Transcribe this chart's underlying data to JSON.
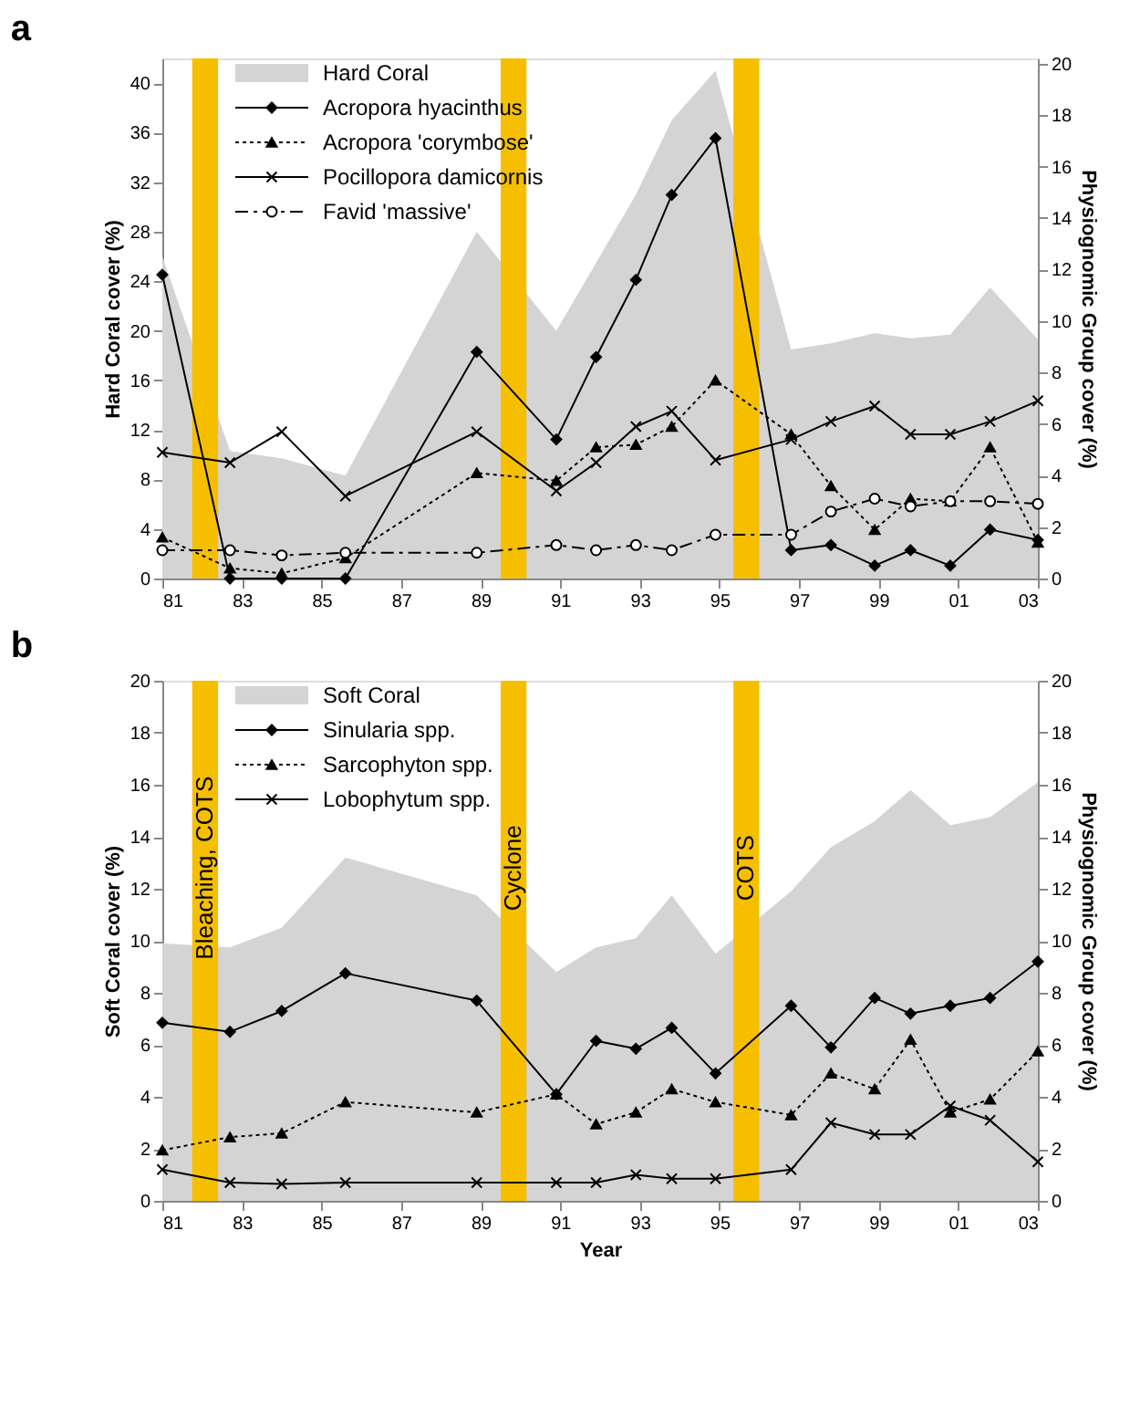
{
  "chart_data": [
    {
      "type": "line",
      "title": "a",
      "ylabel": "Hard Coral cover (%)",
      "y2label": "Physiognomic Group cover (%)",
      "x": [
        1981,
        1982.7,
        1984,
        1985.6,
        1988.9,
        1990.9,
        1991.9,
        1992.9,
        1993.8,
        1994.9,
        1996.8,
        1997.8,
        1998.9,
        1999.8,
        2000.8,
        2001.8,
        2003
      ],
      "xlim": [
        1981,
        2003
      ],
      "xticks": [
        {
          "value": 1981,
          "label": "81"
        },
        {
          "value": 1983,
          "label": "83"
        },
        {
          "value": 1985,
          "label": "85"
        },
        {
          "value": 1987,
          "label": "87"
        },
        {
          "value": 1989,
          "label": "89"
        },
        {
          "value": 1991,
          "label": "91"
        },
        {
          "value": 1993,
          "label": "93"
        },
        {
          "value": 1995,
          "label": "95"
        },
        {
          "value": 1997,
          "label": "97"
        },
        {
          "value": 1999,
          "label": "99"
        },
        {
          "value": 2001,
          "label": "01"
        },
        {
          "value": 2003,
          "label": "03"
        }
      ],
      "ylim": [
        0,
        42
      ],
      "yticks": [
        0,
        4,
        8,
        12,
        16,
        20,
        24,
        28,
        32,
        36,
        40
      ],
      "y2lim": [
        0,
        20.2
      ],
      "y2ticks": [
        0,
        2,
        4,
        6,
        8,
        10,
        12,
        14,
        16,
        18,
        20
      ],
      "legend": "top left",
      "series": [
        {
          "name": "Hard Coral",
          "type": "area",
          "color": "#d4d4d4",
          "x": [
            1981,
            1982.7,
            1984,
            1985.6,
            1988.9,
            1990.9,
            1992.9,
            1993.8,
            1994.9,
            1996.8,
            1997.8,
            1998.9,
            1999.8,
            2000.8,
            2001.8,
            2003
          ],
          "values": [
            26,
            10.3,
            9.7,
            8.3,
            28,
            20,
            31,
            37,
            41,
            18.5,
            19,
            19.8,
            19.4,
            19.7,
            23.5,
            19.3
          ]
        },
        {
          "name": "Acropora hyacinthus",
          "axis": "y2",
          "color": "#000000",
          "marker": "diamond",
          "line_style": "solid",
          "values": [
            11.8,
            0,
            0,
            0,
            8.8,
            5.4,
            8.6,
            11.6,
            14.9,
            17.1,
            1.1,
            1.3,
            0.5,
            1.1,
            0.5,
            1.9,
            1.5
          ]
        },
        {
          "name": "Acropora 'corymbose'",
          "axis": "y2",
          "color": "#000000",
          "marker": "triangle",
          "line_style": "dotted",
          "values": [
            1.6,
            0.4,
            0.2,
            0.8,
            4.1,
            3.8,
            5.1,
            5.2,
            5.9,
            7.7,
            5.6,
            3.6,
            1.9,
            3.1,
            3.0,
            5.1,
            1.4
          ]
        },
        {
          "name": "Pocillopora damicornis",
          "axis": "y2",
          "color": "#000000",
          "marker": "cross",
          "line_style": "solid",
          "values": [
            4.9,
            4.5,
            5.7,
            3.2,
            5.7,
            3.4,
            4.5,
            5.9,
            6.5,
            4.6,
            5.4,
            6.1,
            6.7,
            5.6,
            5.6,
            6.1,
            6.9
          ]
        },
        {
          "name": "Favid 'massive'",
          "axis": "y2",
          "color": "#000000",
          "marker": "circle",
          "line_style": "dashed",
          "values": [
            1.1,
            1.1,
            0.9,
            1.0,
            1.0,
            1.3,
            1.1,
            1.3,
            1.1,
            1.7,
            1.7,
            2.6,
            3.1,
            2.8,
            3.0,
            3.0,
            2.9
          ]
        }
      ],
      "bands": [
        {
          "axis": "x",
          "from": 1981.75,
          "to": 1982.4,
          "color": "#f5bf00"
        },
        {
          "axis": "x",
          "from": 1989.5,
          "to": 1990.15,
          "color": "#f5bf00"
        },
        {
          "axis": "x",
          "from": 1995.35,
          "to": 1996.0,
          "color": "#f5bf00"
        }
      ]
    },
    {
      "type": "line",
      "title": "b",
      "xlabel": "Year",
      "ylabel": "Soft Coral cover  (%)",
      "y2label": "Physiognomic Group cover (%)",
      "x": [
        1981,
        1982.7,
        1984,
        1985.6,
        1988.9,
        1990.9,
        1991.9,
        1992.9,
        1993.8,
        1994.9,
        1996.8,
        1997.8,
        1998.9,
        1999.8,
        2000.8,
        2001.8,
        2003
      ],
      "xlim": [
        1981,
        2003
      ],
      "xticks": [
        {
          "value": 1981,
          "label": "81"
        },
        {
          "value": 1983,
          "label": "83"
        },
        {
          "value": 1985,
          "label": "85"
        },
        {
          "value": 1987,
          "label": "87"
        },
        {
          "value": 1989,
          "label": "89"
        },
        {
          "value": 1991,
          "label": "91"
        },
        {
          "value": 1993,
          "label": "93"
        },
        {
          "value": 1995,
          "label": "95"
        },
        {
          "value": 1997,
          "label": "97"
        },
        {
          "value": 1999,
          "label": "99"
        },
        {
          "value": 2001,
          "label": "01"
        },
        {
          "value": 2003,
          "label": "03"
        }
      ],
      "ylim": [
        0,
        20
      ],
      "yticks": [
        0,
        2,
        4,
        6,
        8,
        10,
        12,
        14,
        16,
        18,
        20
      ],
      "y2lim": [
        0,
        20
      ],
      "y2ticks": [
        0,
        2,
        4,
        6,
        8,
        10,
        12,
        14,
        16,
        18,
        20
      ],
      "legend": "top left",
      "series": [
        {
          "name": "Soft Coral",
          "type": "area",
          "color": "#d4d4d4",
          "x": [
            1981,
            1982.7,
            1984,
            1985.6,
            1988.9,
            1990.9,
            1991.9,
            1992.9,
            1993.8,
            1994.9,
            1996.8,
            1997.8,
            1998.9,
            1999.8,
            2000.8,
            2001.8,
            2003
          ],
          "values": [
            9.9,
            9.75,
            10.5,
            13.2,
            11.75,
            8.8,
            9.75,
            10.1,
            11.75,
            9.5,
            11.9,
            13.6,
            14.6,
            15.8,
            14.45,
            14.75,
            16.1
          ]
        },
        {
          "name": "Sinularia spp.",
          "axis": "y2",
          "color": "#000000",
          "marker": "diamond",
          "line_style": "solid",
          "values": [
            6.85,
            6.5,
            7.3,
            8.75,
            7.7,
            4.1,
            6.15,
            5.85,
            6.65,
            4.9,
            7.5,
            5.9,
            7.8,
            7.2,
            7.5,
            7.8,
            9.2
          ]
        },
        {
          "name": "Sarcophyton spp.",
          "axis": "y2",
          "color": "#000000",
          "marker": "triangle",
          "line_style": "dotted",
          "values": [
            1.95,
            2.45,
            2.6,
            3.8,
            3.4,
            4.1,
            2.95,
            3.4,
            4.3,
            3.8,
            3.3,
            4.9,
            4.3,
            6.2,
            3.4,
            3.9,
            5.75
          ]
        },
        {
          "name": "Lobophytum spp.",
          "axis": "y2",
          "color": "#000000",
          "marker": "cross",
          "line_style": "solid",
          "values": [
            1.2,
            0.7,
            0.65,
            0.7,
            0.7,
            0.7,
            0.7,
            1.0,
            0.85,
            0.85,
            1.2,
            3.0,
            2.55,
            2.55,
            3.65,
            3.1,
            1.5
          ]
        }
      ],
      "bands": [
        {
          "axis": "x",
          "from": 1981.75,
          "to": 1982.4,
          "color": "#f5bf00",
          "label": "Bleaching, COTS"
        },
        {
          "axis": "x",
          "from": 1989.5,
          "to": 1990.15,
          "color": "#f5bf00",
          "label": "Cyclone"
        },
        {
          "axis": "x",
          "from": 1995.35,
          "to": 1996.0,
          "color": "#f5bf00",
          "label": "COTS"
        }
      ]
    }
  ]
}
